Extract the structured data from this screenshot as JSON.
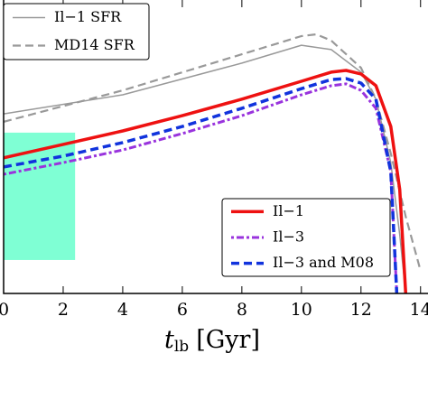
{
  "chart_data": {
    "type": "line",
    "xlabel": {
      "symbol": "t",
      "subscript": "lb",
      "unit": "[Gyr]"
    },
    "xlim": [
      0,
      14.25
    ],
    "xticks": [
      0,
      2,
      4,
      6,
      8,
      10,
      12,
      14
    ],
    "ylim": [
      0,
      100
    ],
    "shaded_region": {
      "x": [
        0,
        2.4
      ],
      "y": [
        11.4,
        54.8
      ],
      "color": "#7fffd4"
    },
    "series": [
      {
        "name": "Il−1 SFR",
        "color": "#999999",
        "style": "solid",
        "width": 1.5,
        "legend": "upper left",
        "x": [
          0,
          4,
          8,
          10,
          11,
          12,
          12.5,
          13,
          13.3,
          13.5
        ],
        "values": [
          61.2,
          67.7,
          78.5,
          84.6,
          83.1,
          75.4,
          66.2,
          44.6,
          20,
          0
        ]
      },
      {
        "name": "MD14 SFR",
        "color": "#999999",
        "style": "dashed",
        "width": 2.2,
        "legend": "upper left",
        "x": [
          0,
          4,
          8,
          10,
          10.5,
          11,
          12,
          12.5,
          13,
          13.5,
          14
        ],
        "values": [
          58.5,
          69.2,
          81.5,
          87.7,
          88.3,
          86.2,
          76.9,
          66.2,
          47.7,
          26.2,
          7.7
        ]
      },
      {
        "name": "Il−1",
        "color": "#ee1111",
        "style": "solid",
        "width": 3.5,
        "legend": "lower right",
        "x": [
          0,
          2,
          4,
          6,
          8,
          10,
          11,
          11.5,
          12,
          12.5,
          13,
          13.3,
          13.5
        ],
        "values": [
          46.2,
          50.8,
          55.4,
          60.6,
          66.2,
          72.3,
          75.4,
          76,
          74.8,
          70.8,
          56.9,
          35.4,
          0
        ]
      },
      {
        "name": "Il−3",
        "color": "#9933dd",
        "style": "dotted",
        "width": 3,
        "legend": "lower right",
        "x": [
          0,
          2,
          4,
          6,
          8,
          10,
          11,
          11.5,
          12,
          12.5,
          13,
          13.2
        ],
        "values": [
          40.6,
          44.6,
          48.9,
          54.5,
          60.6,
          67.7,
          70.8,
          71.4,
          69.2,
          63.1,
          41.5,
          0
        ]
      },
      {
        "name": "Il−3 and M08",
        "color": "#1133dd",
        "style": "dashed",
        "width": 3.5,
        "legend": "lower right",
        "x": [
          0,
          2,
          4,
          6,
          8,
          10,
          11,
          11.5,
          12,
          12.5,
          13,
          13.2
        ],
        "values": [
          43.1,
          46.8,
          51.4,
          56.9,
          63.1,
          69.8,
          72.9,
          73.2,
          71.7,
          66.2,
          41.5,
          0
        ]
      }
    ]
  }
}
